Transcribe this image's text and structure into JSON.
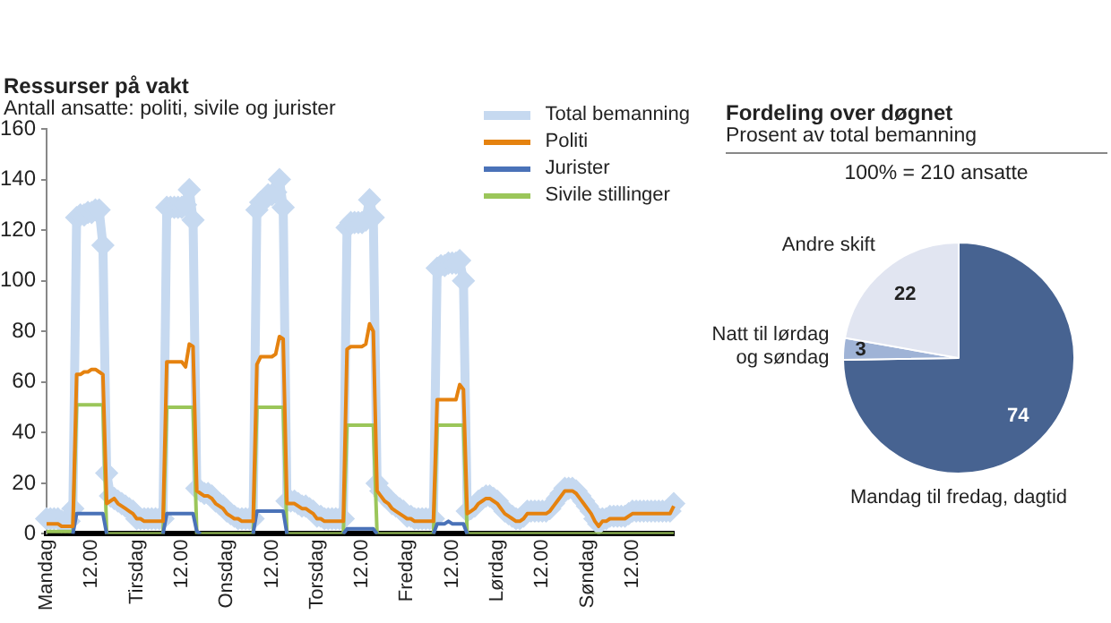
{
  "chart_data": [
    {
      "type": "line",
      "title": "Ressurser på vakt",
      "subtitle": "Antall ansatte: politi, sivile og jurister",
      "categories": [
        "Mandag",
        null,
        null,
        null,
        null,
        null,
        null,
        null,
        null,
        null,
        null,
        null,
        "12.00",
        null,
        null,
        null,
        null,
        null,
        null,
        null,
        null,
        null,
        null,
        null,
        "Tirsdag",
        null,
        null,
        null,
        null,
        null,
        null,
        null,
        null,
        null,
        null,
        null,
        "12.00",
        null,
        null,
        null,
        null,
        null,
        null,
        null,
        null,
        null,
        null,
        null,
        "Onsdag",
        null,
        null,
        null,
        null,
        null,
        null,
        null,
        null,
        null,
        null,
        null,
        "12.00",
        null,
        null,
        null,
        null,
        null,
        null,
        null,
        null,
        null,
        null,
        null,
        "Torsdag",
        null,
        null,
        null,
        null,
        null,
        null,
        null,
        null,
        null,
        null,
        null,
        "12.00",
        null,
        null,
        null,
        null,
        null,
        null,
        null,
        null,
        null,
        null,
        null,
        "Fredag",
        null,
        null,
        null,
        null,
        null,
        null,
        null,
        null,
        null,
        null,
        null,
        "12.00",
        null,
        null,
        null,
        null,
        null,
        null,
        null,
        null,
        null,
        null,
        null,
        "Lørdag",
        null,
        null,
        null,
        null,
        null,
        null,
        null,
        null,
        null,
        null,
        null,
        "12.00",
        null,
        null,
        null,
        null,
        null,
        null,
        null,
        null,
        null,
        null,
        null,
        "Søndag",
        null,
        null,
        null,
        null,
        null,
        null,
        null,
        null,
        null,
        null,
        null,
        "12.00",
        null,
        null,
        null,
        null,
        null,
        null,
        null,
        null,
        null,
        null,
        null
      ],
      "ylim": [
        0,
        160
      ],
      "yticks": [
        0,
        20,
        40,
        60,
        80,
        100,
        120,
        140,
        160
      ],
      "grid": false,
      "legend": "top right",
      "marker": "none",
      "series": [
        {
          "name": "Total bemanning",
          "color": "#c6d9f0",
          "marker": "diamond",
          "values": [
            6,
            6,
            6,
            6,
            5,
            5,
            5,
            10,
            125,
            126,
            126,
            127,
            127,
            128,
            128,
            114,
            24,
            15,
            14,
            13,
            12,
            11,
            10,
            9,
            6,
            6,
            6,
            6,
            6,
            6,
            6,
            6,
            129,
            129,
            129,
            129,
            129,
            130,
            136,
            124,
            18,
            17,
            16,
            16,
            15,
            13,
            12,
            11,
            9,
            8,
            7,
            6,
            6,
            6,
            6,
            6,
            128,
            131,
            132,
            134,
            134,
            135,
            140,
            129,
            13,
            13,
            13,
            12,
            11,
            11,
            10,
            9,
            7,
            7,
            6,
            6,
            6,
            6,
            6,
            6,
            121,
            123,
            123,
            123,
            123,
            124,
            132,
            125,
            20,
            17,
            15,
            14,
            12,
            11,
            10,
            9,
            7,
            7,
            6,
            6,
            6,
            6,
            6,
            6,
            105,
            106,
            106,
            107,
            107,
            107,
            108,
            100,
            9,
            10,
            11,
            13,
            14,
            15,
            15,
            14,
            13,
            11,
            9,
            8,
            7,
            6,
            6,
            7,
            9,
            9,
            9,
            9,
            9,
            9,
            10,
            12,
            14,
            16,
            18,
            18,
            18,
            17,
            15,
            13,
            11,
            9,
            6,
            4,
            6,
            6,
            7,
            7,
            7,
            7,
            7,
            8,
            9,
            9,
            9,
            9,
            9,
            9,
            9,
            9,
            9,
            9,
            9,
            12
          ]
        },
        {
          "name": "Politi",
          "color": "#e5820f",
          "values": [
            4,
            4,
            4,
            4,
            3,
            3,
            3,
            3,
            63,
            63,
            64,
            64,
            65,
            65,
            64,
            63,
            12,
            13,
            14,
            12,
            11,
            10,
            9,
            8,
            6,
            6,
            5,
            5,
            5,
            5,
            5,
            5,
            68,
            68,
            68,
            68,
            68,
            66,
            75,
            74,
            17,
            16,
            15,
            15,
            14,
            12,
            11,
            10,
            8,
            7,
            6,
            6,
            5,
            5,
            5,
            5,
            67,
            70,
            70,
            70,
            70,
            71,
            78,
            77,
            12,
            12,
            12,
            11,
            10,
            10,
            9,
            8,
            6,
            6,
            5,
            5,
            5,
            5,
            5,
            5,
            73,
            74,
            74,
            74,
            74,
            75,
            83,
            80,
            17,
            15,
            13,
            12,
            10,
            9,
            8,
            7,
            6,
            6,
            5,
            5,
            5,
            5,
            5,
            5,
            53,
            53,
            53,
            53,
            53,
            53,
            59,
            57,
            8,
            9,
            10,
            12,
            13,
            14,
            14,
            13,
            12,
            10,
            8,
            7,
            6,
            5,
            5,
            6,
            8,
            8,
            8,
            8,
            8,
            8,
            9,
            11,
            13,
            15,
            17,
            17,
            17,
            16,
            14,
            12,
            10,
            8,
            5,
            3,
            5,
            5,
            6,
            6,
            6,
            6,
            6,
            7,
            8,
            8,
            8,
            8,
            8,
            8,
            8,
            8,
            8,
            8,
            8,
            11
          ]
        },
        {
          "name": "Jurister",
          "color": "#4a72b8",
          "values": [
            null,
            null,
            null,
            null,
            null,
            null,
            null,
            0,
            8,
            8,
            8,
            8,
            8,
            8,
            8,
            8,
            0,
            null,
            null,
            null,
            null,
            null,
            null,
            null,
            null,
            null,
            null,
            null,
            null,
            null,
            null,
            0,
            8,
            8,
            8,
            8,
            8,
            8,
            8,
            8,
            1,
            0,
            null,
            null,
            null,
            null,
            null,
            null,
            null,
            null,
            null,
            null,
            null,
            null,
            null,
            0,
            9,
            9,
            9,
            9,
            9,
            9,
            9,
            9,
            0,
            null,
            null,
            null,
            null,
            null,
            null,
            null,
            null,
            null,
            null,
            null,
            null,
            null,
            null,
            0,
            2,
            2,
            2,
            2,
            2,
            2,
            2,
            2,
            0,
            null,
            null,
            null,
            null,
            null,
            null,
            null,
            null,
            null,
            null,
            null,
            null,
            null,
            null,
            0,
            4,
            4,
            4,
            5,
            4,
            4,
            4,
            4,
            0,
            null,
            null,
            null,
            null,
            null,
            null,
            null,
            null,
            null,
            null,
            null,
            null,
            null,
            null,
            null,
            null,
            null,
            null,
            null,
            null,
            null,
            null,
            null,
            null,
            null,
            null,
            null,
            null,
            null,
            null,
            null,
            null,
            null,
            null,
            null,
            null,
            null,
            null,
            null,
            null,
            null,
            null,
            null,
            null,
            null,
            null,
            null,
            null,
            null,
            null,
            null,
            null,
            null,
            null,
            null
          ]
        },
        {
          "name": "Sivile stillinger",
          "color": "#9bc65a",
          "values": [
            1,
            1,
            1,
            1,
            1,
            1,
            1,
            1,
            51,
            51,
            51,
            51,
            51,
            51,
            51,
            51,
            0,
            0,
            0,
            0,
            0,
            0,
            0,
            0,
            0,
            0,
            0,
            0,
            0,
            0,
            0,
            0,
            50,
            50,
            50,
            50,
            50,
            50,
            50,
            50,
            0,
            0,
            0,
            0,
            0,
            0,
            0,
            0,
            0,
            0,
            0,
            0,
            0,
            0,
            0,
            0,
            50,
            50,
            50,
            50,
            50,
            50,
            50,
            50,
            0,
            0,
            0,
            0,
            0,
            0,
            0,
            0,
            0,
            0,
            0,
            0,
            0,
            0,
            0,
            0,
            43,
            43,
            43,
            43,
            43,
            43,
            43,
            43,
            0,
            0,
            0,
            0,
            0,
            0,
            0,
            0,
            0,
            0,
            0,
            0,
            0,
            0,
            0,
            0,
            43,
            43,
            43,
            43,
            43,
            43,
            43,
            43,
            0,
            0,
            0,
            0,
            0,
            0,
            0,
            0,
            0,
            0,
            0,
            0,
            0,
            0,
            0,
            0,
            0,
            0,
            0,
            0,
            0,
            0,
            0,
            0,
            0,
            0,
            0,
            0,
            0,
            0,
            0,
            0,
            0,
            0,
            0,
            0,
            0,
            0,
            0,
            0,
            0,
            0,
            0,
            0,
            0,
            0,
            0,
            0,
            0,
            0,
            0,
            0,
            0,
            0,
            0,
            0
          ]
        }
      ]
    },
    {
      "type": "pie",
      "title": "Fordeling over døgnet",
      "subtitle": "Prosent av total bemanning",
      "annotations": [
        "100% = 210 ansatte"
      ],
      "categories": [
        "Mandag til fredag, dagtid",
        "Natt til lørdag og søndag",
        "Andre skift"
      ],
      "values": [
        74,
        3,
        22
      ],
      "colors": [
        "#476391",
        "#9fb3d6",
        "#e1e5f1"
      ],
      "data_labels": true,
      "legend": false
    }
  ]
}
